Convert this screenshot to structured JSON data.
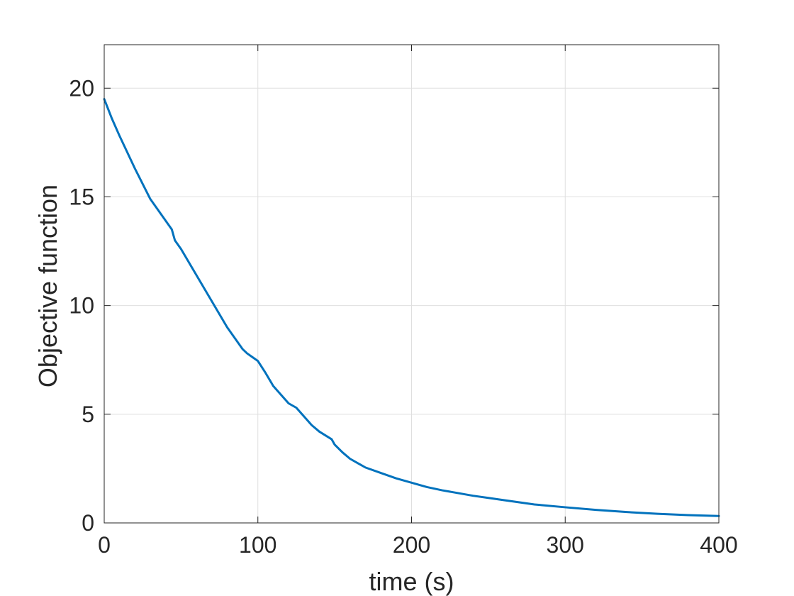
{
  "chart_data": {
    "type": "line",
    "title": "",
    "xlabel": "time (s)",
    "ylabel": "Objective function",
    "xlim": [
      0,
      400
    ],
    "ylim": [
      0,
      22
    ],
    "xticks": [
      0,
      100,
      200,
      300,
      400
    ],
    "yticks": [
      0,
      5,
      10,
      15,
      20
    ],
    "xtick_labels": [
      "0",
      "100",
      "200",
      "300",
      "400"
    ],
    "ytick_labels": [
      "0",
      "5",
      "10",
      "15",
      "20"
    ],
    "grid": true,
    "legend": "none",
    "series": [
      {
        "color": "#0072BD",
        "x": [
          0,
          5,
          10,
          20,
          30,
          40,
          44,
          46,
          50,
          60,
          70,
          80,
          90,
          93,
          95,
          100,
          105,
          110,
          115,
          120,
          125,
          130,
          135,
          140,
          148,
          150,
          155,
          160,
          170,
          180,
          190,
          200,
          210,
          220,
          240,
          250,
          260,
          280,
          300,
          320,
          340,
          360,
          380,
          400
        ],
        "y": [
          19.5,
          18.6,
          17.8,
          16.3,
          14.9,
          13.9,
          13.5,
          13.0,
          12.6,
          11.4,
          10.2,
          9.0,
          8.0,
          7.8,
          7.7,
          7.45,
          6.9,
          6.3,
          5.9,
          5.5,
          5.3,
          4.9,
          4.5,
          4.2,
          3.85,
          3.6,
          3.25,
          2.95,
          2.55,
          2.3,
          2.05,
          1.85,
          1.65,
          1.5,
          1.25,
          1.15,
          1.05,
          0.85,
          0.72,
          0.6,
          0.5,
          0.42,
          0.36,
          0.32
        ]
      }
    ]
  }
}
